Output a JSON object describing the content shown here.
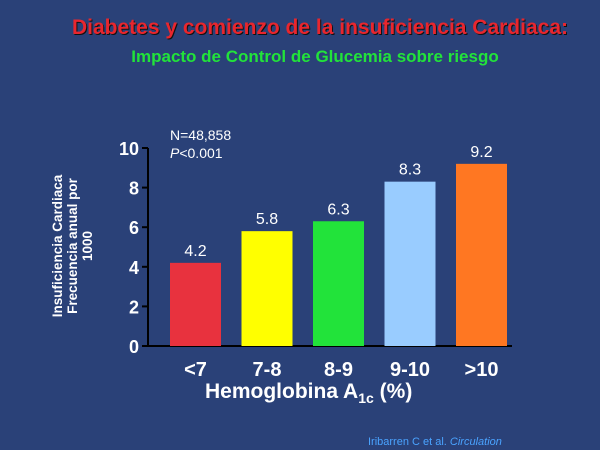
{
  "title": "Diabetes y comienzo  de la insuficiencia Cardiaca:",
  "subtitle": "Impacto de Control de Glucemia sobre riesgo",
  "note": {
    "n": "N=48,858",
    "p_letter": "P",
    "p_rest": "<0.001"
  },
  "ylabel": {
    "line1": "Insuficiencia Cardiaca",
    "line2": "Frecuencia anual por",
    "line3": "1000"
  },
  "xlabel": {
    "main": "Hemoglobina A",
    "sub": "1c",
    "tail": " (%)"
  },
  "citation": {
    "authors": "Iribarren C et al. ",
    "journal": "Circulation"
  },
  "chart_data": {
    "type": "bar",
    "categories": [
      "<7",
      "7-8",
      "8-9",
      "9-10",
      ">10"
    ],
    "values": [
      4.2,
      5.8,
      6.3,
      8.3,
      9.2
    ],
    "data_labels": [
      "4.2",
      "5.8",
      "6.3",
      "8.3",
      "9.2"
    ],
    "colors": [
      "#e8323e",
      "#ffff00",
      "#22e33a",
      "#99ccff",
      "#ff7722"
    ],
    "yticks": [
      0,
      2,
      4,
      6,
      8,
      10
    ],
    "ylim": [
      0,
      10
    ],
    "grid": false
  }
}
